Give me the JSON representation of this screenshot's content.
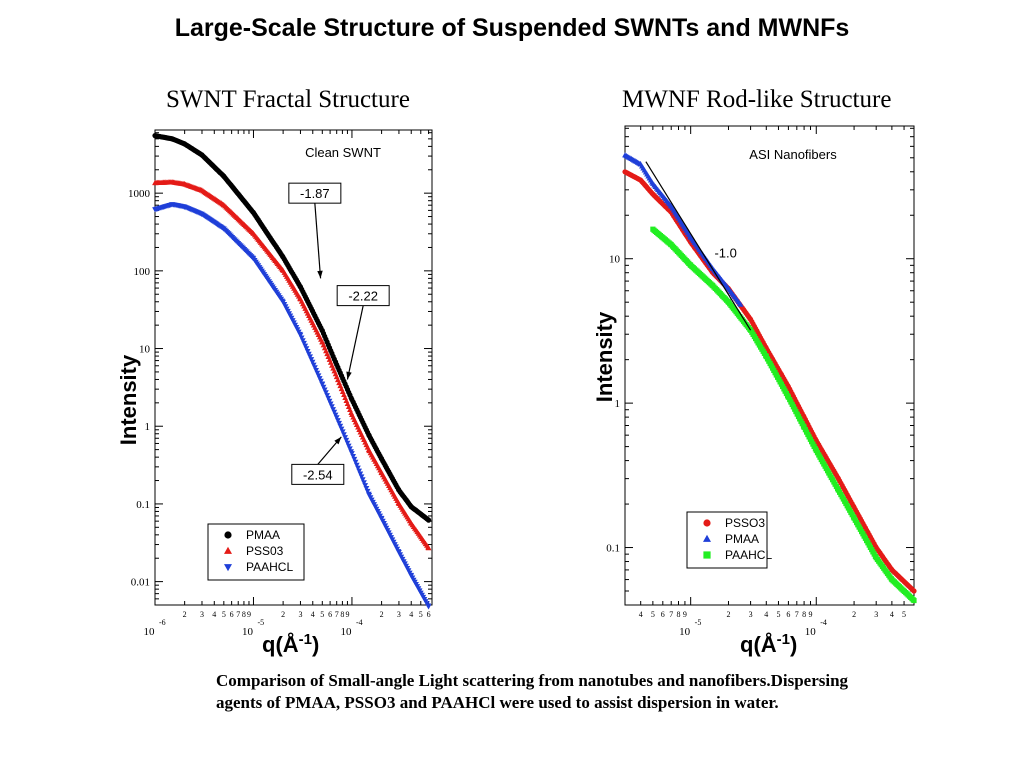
{
  "page": {
    "title": "Large-Scale Structure of Suspended SWNTs and MWNFs",
    "caption": "Comparison of Small-angle Light scattering from nanotubes and nanofibers.Dispersing agents of PMAA, PSSO3 and PAAHCl were used to assist dispersion in water."
  },
  "colors": {
    "black": "#000000",
    "red": "#e41b17",
    "blue": "#1f3fd8",
    "green": "#22ee22"
  },
  "chart_data": [
    {
      "type": "scatter",
      "title": "SWNT Fractal Structure",
      "xlabel_base": "q(Å",
      "xlabel_exp": "-1",
      "xlabel_close": ")",
      "ylabel": "Intensity",
      "xscale": "log",
      "yscale": "log",
      "xlim": [
        1e-06,
        0.00065
      ],
      "ylim": [
        0.005,
        6500
      ],
      "y_ticks": [
        {
          "value": 0.01,
          "label": "0.01"
        },
        {
          "value": 0.1,
          "label": "0.1"
        },
        {
          "value": 1,
          "label": "1"
        },
        {
          "value": 10,
          "label": "10"
        },
        {
          "value": 100,
          "label": "100"
        },
        {
          "value": 1000,
          "label": "1000"
        }
      ],
      "x_decades": [
        {
          "value": 1e-06,
          "base": "10",
          "exp": "-6"
        },
        {
          "value": 1e-05,
          "base": "10",
          "exp": "-5"
        },
        {
          "value": 0.0001,
          "base": "10",
          "exp": "-4"
        }
      ],
      "inner_label": "Clean SWNT",
      "legend_position": "bottom-left",
      "series": [
        {
          "name": "PMAA",
          "color": "#000000",
          "marker": "circle",
          "points": [
            [
              1e-06,
              5500
            ],
            [
              1.5e-06,
              5000
            ],
            [
              2e-06,
              4300
            ],
            [
              3e-06,
              3100
            ],
            [
              5e-06,
              1650
            ],
            [
              1e-05,
              560
            ],
            [
              2e-05,
              150
            ],
            [
              3e-05,
              62
            ],
            [
              5e-05,
              17
            ],
            [
              7e-05,
              6.2
            ],
            [
              0.0001,
              2.2
            ],
            [
              0.00015,
              0.75
            ],
            [
              0.0002,
              0.38
            ],
            [
              0.0003,
              0.15
            ],
            [
              0.0004,
              0.092
            ],
            [
              0.0006,
              0.062
            ]
          ]
        },
        {
          "name": "PSS03",
          "color": "#e41b17",
          "marker": "triangle-up",
          "points": [
            [
              1e-06,
              1350
            ],
            [
              1.5e-06,
              1380
            ],
            [
              2e-06,
              1300
            ],
            [
              3e-06,
              1080
            ],
            [
              5e-06,
              700
            ],
            [
              1e-05,
              300
            ],
            [
              2e-05,
              100
            ],
            [
              3e-05,
              43
            ],
            [
              5e-05,
              12
            ],
            [
              7e-05,
              4.3
            ],
            [
              0.0001,
              1.4
            ],
            [
              0.00015,
              0.48
            ],
            [
              0.0002,
              0.25
            ],
            [
              0.0003,
              0.1
            ],
            [
              0.0004,
              0.056
            ],
            [
              0.0006,
              0.027
            ]
          ]
        },
        {
          "name": "PAAHCL",
          "color": "#1f3fd8",
          "marker": "triangle-down",
          "points": [
            [
              1e-06,
              620
            ],
            [
              1.5e-06,
              720
            ],
            [
              2e-06,
              670
            ],
            [
              3e-06,
              540
            ],
            [
              5e-06,
              350
            ],
            [
              1e-05,
              145
            ],
            [
              2e-05,
              40
            ],
            [
              3e-05,
              15
            ],
            [
              5e-05,
              3.5
            ],
            [
              7e-05,
              1.3
            ],
            [
              0.0001,
              0.45
            ],
            [
              0.00015,
              0.13
            ],
            [
              0.0002,
              0.065
            ],
            [
              0.0003,
              0.024
            ],
            [
              0.0004,
              0.012
            ],
            [
              0.0006,
              0.0048
            ]
          ]
        }
      ],
      "annotations": [
        {
          "label": "-1.87",
          "box_q": 4.2e-05,
          "box_I": 1000,
          "tip_q": 4.8e-05,
          "tip_I": 80
        },
        {
          "label": "-2.22",
          "box_q": 0.00013,
          "box_I": 48,
          "tip_q": 9e-05,
          "tip_I": 4
        },
        {
          "label": "-2.54",
          "box_q": 4.5e-05,
          "box_I": 0.24,
          "tip_q": 7.8e-05,
          "tip_I": 0.73
        }
      ]
    },
    {
      "type": "scatter",
      "title": "MWNF Rod-like Structure",
      "xlabel_base": "q(Å",
      "xlabel_exp": "-1",
      "xlabel_close": ")",
      "ylabel": "Intensity",
      "xscale": "log",
      "yscale": "log",
      "xlim": [
        3e-06,
        0.0006
      ],
      "ylim": [
        0.04,
        83
      ],
      "y_ticks": [
        {
          "value": 0.1,
          "label": "0.1"
        },
        {
          "value": 1,
          "label": "1"
        },
        {
          "value": 10,
          "label": "10"
        }
      ],
      "x_decades": [
        {
          "value": 1e-05,
          "base": "10",
          "exp": "-5"
        },
        {
          "value": 0.0001,
          "base": "10",
          "exp": "-4"
        }
      ],
      "inner_label": "ASI Nanofibers",
      "slope_line": {
        "label": "-1.0",
        "from": [
          4.4e-06,
          47
        ],
        "to": [
          3e-05,
          3.2
        ],
        "label_q": 1.9e-05,
        "label_I": 10.2
      },
      "legend_position": "bottom-right",
      "series": [
        {
          "name": "PSSO3",
          "color": "#e41b17",
          "marker": "circle",
          "points": [
            [
              3e-06,
              40
            ],
            [
              4e-06,
              35
            ],
            [
              5e-06,
              28
            ],
            [
              7e-06,
              21
            ],
            [
              1e-05,
              13
            ],
            [
              1.5e-05,
              8
            ],
            [
              2e-05,
              6.2
            ],
            [
              3e-05,
              3.8
            ],
            [
              4e-05,
              2.4
            ],
            [
              6e-05,
              1.3
            ],
            [
              8e-05,
              0.8
            ],
            [
              0.0001,
              0.55
            ],
            [
              0.00015,
              0.3
            ],
            [
              0.0002,
              0.19
            ],
            [
              0.0003,
              0.1
            ],
            [
              0.0004,
              0.07
            ],
            [
              0.0006,
              0.05
            ]
          ]
        },
        {
          "name": "PMAA",
          "color": "#1f3fd8",
          "marker": "triangle-up",
          "points": [
            [
              3e-06,
              52
            ],
            [
              4e-06,
              45
            ],
            [
              5e-06,
              33
            ],
            [
              7e-06,
              23
            ],
            [
              1e-05,
              14
            ],
            [
              1.5e-05,
              8.5
            ],
            [
              2e-05,
              6.2
            ],
            [
              2.5e-05,
              4.8
            ]
          ]
        },
        {
          "name": "PAAHCL",
          "color": "#22ee22",
          "marker": "square",
          "points": [
            [
              5e-06,
              16
            ],
            [
              7e-06,
              12.5
            ],
            [
              1e-05,
              9
            ],
            [
              1.5e-05,
              6.5
            ],
            [
              2e-05,
              5
            ],
            [
              3e-05,
              3.2
            ],
            [
              4e-05,
              2.1
            ],
            [
              6e-05,
              1.1
            ],
            [
              8e-05,
              0.68
            ],
            [
              0.0001,
              0.47
            ],
            [
              0.00015,
              0.25
            ],
            [
              0.0002,
              0.16
            ],
            [
              0.0003,
              0.085
            ],
            [
              0.0004,
              0.06
            ],
            [
              0.0006,
              0.043
            ]
          ]
        }
      ]
    }
  ]
}
